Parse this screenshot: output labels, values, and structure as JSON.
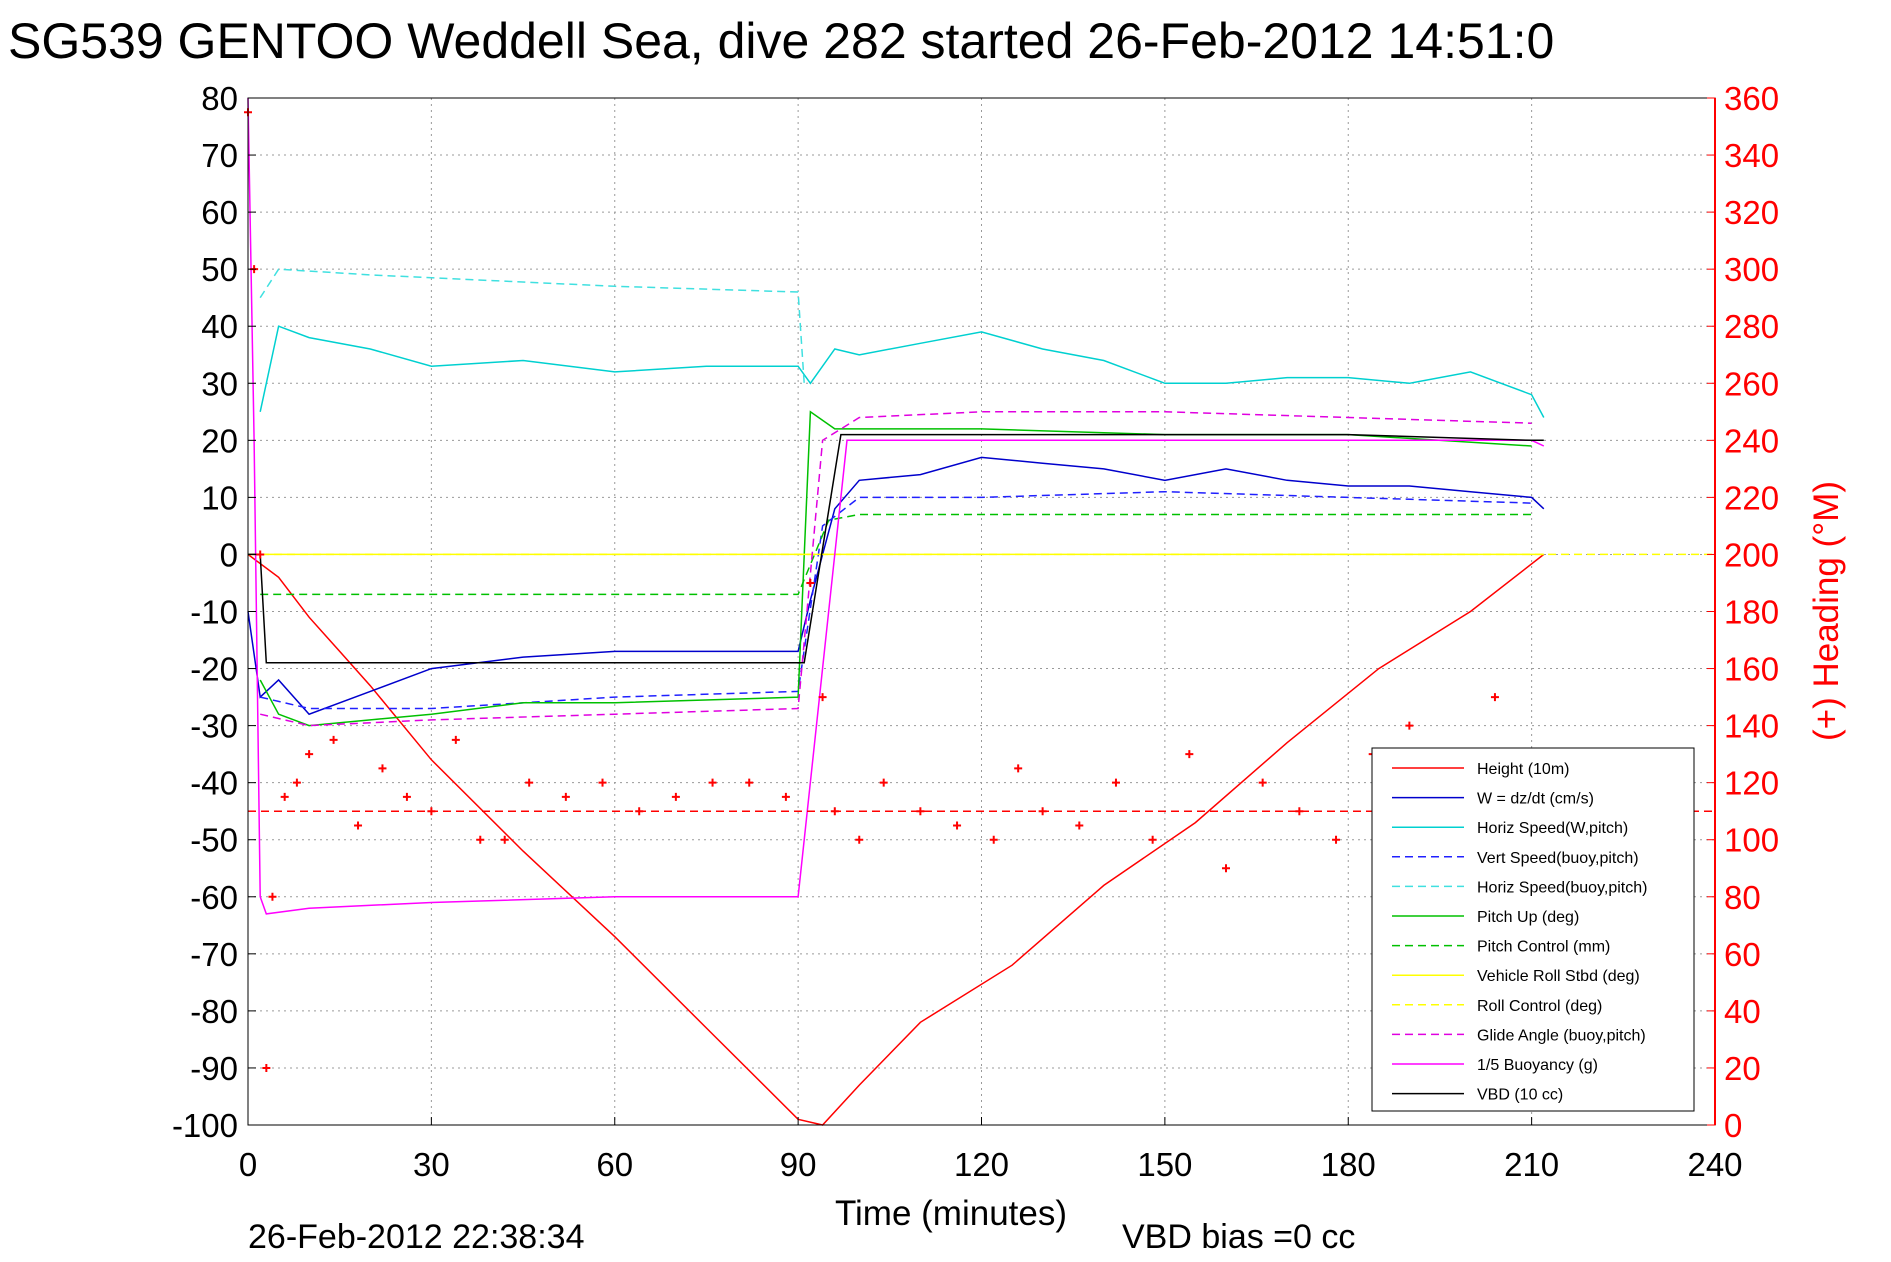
{
  "chart_data": {
    "type": "line",
    "title": "SG539 GENTOO Weddell Sea, dive 282 started 26-Feb-2012 14:51:0",
    "xlabel": "Time (minutes)",
    "ylabel_right": "(+) Heading (°M)",
    "xlim": [
      0,
      240
    ],
    "ylim_left": [
      -100,
      80
    ],
    "ylim_right": [
      0,
      360
    ],
    "x_ticks": [
      0,
      30,
      60,
      90,
      120,
      150,
      180,
      210,
      240
    ],
    "y_ticks_left": [
      80,
      70,
      60,
      50,
      40,
      30,
      20,
      10,
      0,
      -10,
      -20,
      -30,
      -40,
      -50,
      -60,
      -70,
      -80,
      -90,
      -100
    ],
    "y_ticks_right": [
      360,
      340,
      320,
      300,
      280,
      260,
      240,
      220,
      200,
      180,
      160,
      140,
      120,
      100,
      80,
      60,
      40,
      20,
      0
    ],
    "grid": true,
    "legend_position": "lower-right",
    "series": [
      {
        "name": "Height (10m)",
        "color": "#ff0000",
        "style": "solid",
        "x": [
          0,
          5,
          10,
          15,
          20,
          30,
          45,
          60,
          75,
          90,
          94,
          100,
          110,
          125,
          140,
          155,
          170,
          185,
          200,
          212
        ],
        "y": [
          0,
          -4,
          -11,
          -17,
          -23,
          -36,
          -52,
          -67,
          -83,
          -99,
          -100,
          -93,
          -82,
          -72,
          -58,
          -47,
          -33,
          -20,
          -10,
          0
        ]
      },
      {
        "name": "W = dz/dt (cm/s)",
        "color": "#0000cc",
        "style": "solid",
        "x": [
          0,
          2,
          5,
          10,
          20,
          30,
          45,
          60,
          75,
          90,
          92,
          96,
          100,
          110,
          120,
          130,
          140,
          150,
          160,
          170,
          180,
          190,
          200,
          210,
          212
        ],
        "y": [
          -10,
          -25,
          -22,
          -28,
          -24,
          -20,
          -18,
          -17,
          -17,
          -17,
          -8,
          8,
          13,
          14,
          17,
          16,
          15,
          13,
          15,
          13,
          12,
          12,
          11,
          10,
          8
        ]
      },
      {
        "name": "Horiz Speed(W,pitch)",
        "color": "#00d0d0",
        "style": "solid",
        "x": [
          2,
          5,
          10,
          20,
          30,
          45,
          60,
          75,
          90,
          92,
          96,
          100,
          110,
          120,
          130,
          140,
          150,
          160,
          170,
          180,
          190,
          200,
          210,
          212
        ],
        "y": [
          25,
          40,
          38,
          36,
          33,
          34,
          32,
          33,
          33,
          30,
          36,
          35,
          37,
          39,
          36,
          34,
          30,
          30,
          31,
          31,
          30,
          32,
          28,
          24
        ]
      },
      {
        "name": "Vert Speed(buoy,pitch)",
        "color": "#2020ff",
        "style": "dashed",
        "x": [
          2,
          10,
          30,
          60,
          90,
          94,
          100,
          120,
          150,
          180,
          210
        ],
        "y": [
          -25,
          -27,
          -27,
          -25,
          -24,
          5,
          10,
          10,
          11,
          10,
          9
        ]
      },
      {
        "name": "Horiz Speed(buoy,pitch)",
        "color": "#40e0e0",
        "style": "dashed",
        "x": [
          2,
          5,
          20,
          40,
          60,
          90,
          91
        ],
        "y": [
          45,
          50,
          49,
          48,
          47,
          46,
          30
        ]
      },
      {
        "name": "Pitch Up (deg)",
        "color": "#00c000",
        "style": "solid",
        "x": [
          2,
          5,
          10,
          20,
          30,
          45,
          60,
          90,
          92,
          96,
          100,
          120,
          150,
          180,
          210
        ],
        "y": [
          -22,
          -28,
          -30,
          -29,
          -28,
          -26,
          -26,
          -25,
          25,
          22,
          22,
          22,
          21,
          21,
          19
        ]
      },
      {
        "name": "Pitch Control (mm)",
        "color": "#00c000",
        "style": "dashed",
        "x": [
          2,
          10,
          30,
          60,
          90,
          95,
          100,
          130,
          160,
          190,
          210
        ],
        "y": [
          -7,
          -7,
          -7,
          -7,
          -7,
          6,
          7,
          7,
          7,
          7,
          7
        ]
      },
      {
        "name": "Vehicle Roll Stbd (deg)",
        "color": "#ffff00",
        "style": "solid",
        "x": [
          0,
          20,
          40,
          60,
          80,
          90,
          100,
          120,
          140,
          160,
          180,
          200,
          212
        ],
        "y": [
          0,
          0,
          0,
          0,
          0,
          0,
          0,
          0,
          0,
          0,
          0,
          0,
          0
        ]
      },
      {
        "name": "Roll Control (deg)",
        "color": "#ffff00",
        "style": "dashed",
        "x": [
          0,
          240
        ],
        "y": [
          0,
          0
        ]
      },
      {
        "name": "Glide Angle (buoy,pitch)",
        "color": "#e000e0",
        "style": "dashed",
        "x": [
          2,
          10,
          30,
          60,
          90,
          94,
          100,
          120,
          150,
          180,
          210
        ],
        "y": [
          -28,
          -30,
          -29,
          -28,
          -27,
          20,
          24,
          25,
          25,
          24,
          23
        ]
      },
      {
        "name": "1/5 Buoyancy (g)",
        "color": "#ff00ff",
        "style": "solid",
        "x": [
          0,
          1,
          2,
          3,
          10,
          30,
          60,
          90,
          98,
          120,
          150,
          180,
          210,
          212
        ],
        "y": [
          80,
          20,
          -60,
          -63,
          -62,
          -61,
          -60,
          -60,
          20,
          20,
          20,
          20,
          20,
          19
        ]
      },
      {
        "name": "VBD (10 cc)",
        "color": "#000000",
        "style": "solid",
        "x": [
          0,
          2,
          3,
          10,
          30,
          60,
          90,
          91,
          97,
          120,
          150,
          180,
          210,
          212
        ],
        "y": [
          0,
          0,
          -19,
          -19,
          -19,
          -19,
          -19,
          -19,
          21,
          21,
          21,
          21,
          20,
          20
        ]
      },
      {
        "name": "",
        "color": "#ff0000",
        "style": "markers",
        "axis": "right",
        "x": [
          0,
          1,
          2,
          3,
          4,
          6,
          8,
          10,
          14,
          18,
          22,
          26,
          30,
          34,
          38,
          42,
          46,
          52,
          58,
          64,
          70,
          76,
          82,
          88,
          92,
          94,
          96,
          100,
          104,
          110,
          116,
          122,
          126,
          130,
          136,
          142,
          148,
          154,
          160,
          166,
          172,
          178,
          184,
          190,
          196,
          204
        ],
        "y": [
          355,
          300,
          200,
          20,
          80,
          115,
          120,
          130,
          135,
          105,
          125,
          115,
          110,
          135,
          100,
          100,
          120,
          115,
          120,
          110,
          115,
          120,
          120,
          115,
          190,
          150,
          110,
          100,
          120,
          110,
          105,
          100,
          125,
          110,
          105,
          120,
          100,
          130,
          90,
          120,
          110,
          100,
          130,
          140,
          130,
          150
        ]
      },
      {
        "name": "",
        "color": "#ff0000",
        "style": "dashed",
        "axis": "right",
        "x": [
          0,
          240
        ],
        "y": [
          110,
          110
        ]
      }
    ]
  },
  "annotations": {
    "timestamp": "26-Feb-2012 22:38:34",
    "vbd_bias": "VBD bias =0 cc"
  }
}
